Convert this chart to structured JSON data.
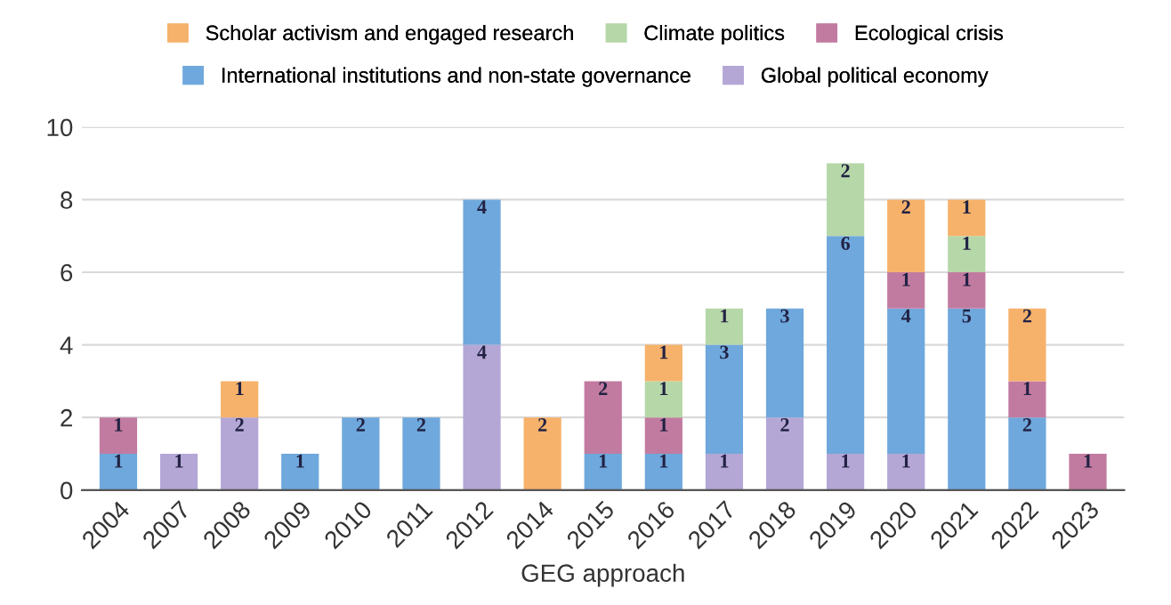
{
  "chart_data": {
    "type": "bar",
    "stacked": true,
    "xlabel": "GEG approach",
    "categories": [
      "2004",
      "2007",
      "2008",
      "2009",
      "2010",
      "2011",
      "2012",
      "2014",
      "2015",
      "2016",
      "2017",
      "2018",
      "2019",
      "2020",
      "2021",
      "2022",
      "2023"
    ],
    "series": [
      {
        "name": "Global political economy",
        "color": "#b4a7d6",
        "values": [
          null,
          1,
          2,
          null,
          null,
          null,
          4,
          null,
          null,
          null,
          1,
          2,
          1,
          1,
          null,
          null,
          null
        ]
      },
      {
        "name": "International institutions and non-state governance",
        "color": "#6fa8dc",
        "values": [
          1,
          null,
          null,
          1,
          2,
          2,
          4,
          null,
          1,
          1,
          3,
          3,
          6,
          4,
          5,
          2,
          null
        ]
      },
      {
        "name": "Ecological crisis",
        "color": "#c27ba0",
        "values": [
          1,
          null,
          null,
          null,
          null,
          null,
          null,
          null,
          2,
          1,
          null,
          null,
          null,
          1,
          1,
          1,
          1
        ]
      },
      {
        "name": "Climate politics",
        "color": "#b6d7a8",
        "values": [
          null,
          null,
          null,
          null,
          null,
          null,
          null,
          null,
          null,
          1,
          1,
          null,
          2,
          null,
          1,
          null,
          null
        ]
      },
      {
        "name": "Scholar activism and engaged research",
        "color": "#f6b26b",
        "values": [
          null,
          null,
          1,
          null,
          null,
          null,
          null,
          2,
          null,
          1,
          null,
          null,
          null,
          2,
          1,
          2,
          null
        ]
      }
    ],
    "ylim": [
      0,
      10
    ],
    "yticks": [
      0,
      2,
      4,
      6,
      8,
      10
    ],
    "grid": "y",
    "legend": "top",
    "data_labels": true
  }
}
